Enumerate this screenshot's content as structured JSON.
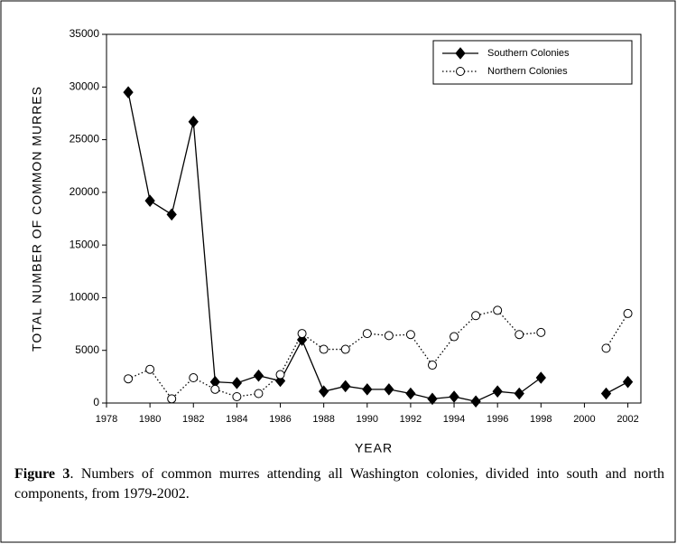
{
  "chart_data": {
    "type": "line",
    "ylabel": "TOTAL NUMBER OF COMMON MURRES",
    "xlabel": "YEAR",
    "x": [
      1979,
      1980,
      1981,
      1982,
      1983,
      1984,
      1985,
      1986,
      1987,
      1988,
      1989,
      1990,
      1991,
      1992,
      1993,
      1994,
      1995,
      1996,
      1997,
      1998,
      1999,
      2000,
      2001,
      2002
    ],
    "series": [
      {
        "name": "Southern Colonies",
        "color": "#000000",
        "line_style": "solid",
        "marker": "diamond",
        "values": [
          29500,
          19200,
          17900,
          26700,
          2000,
          1900,
          2600,
          2100,
          6000,
          1100,
          1600,
          1300,
          1300,
          900,
          400,
          600,
          150,
          1100,
          900,
          2400,
          null,
          null,
          900,
          2000
        ]
      },
      {
        "name": "Northern Colonies",
        "color": "#000000",
        "line_style": "dotted",
        "marker": "circle",
        "values": [
          2300,
          3200,
          400,
          2400,
          1300,
          600,
          900,
          2700,
          6600,
          5100,
          5100,
          6600,
          6400,
          6500,
          3600,
          6300,
          8300,
          8800,
          6500,
          6700,
          null,
          null,
          5200,
          8500
        ]
      }
    ],
    "xlim": [
      1978,
      2002.6
    ],
    "xticks": [
      1978,
      1980,
      1982,
      1984,
      1986,
      1988,
      1990,
      1992,
      1994,
      1996,
      1998,
      2000,
      2002
    ],
    "ylim": [
      0,
      35000
    ],
    "yticks": [
      0,
      5000,
      10000,
      15000,
      20000,
      25000,
      30000,
      35000
    ],
    "legend": "upper right"
  },
  "caption": {
    "label": "Figure 3",
    "text": ".   Numbers of common murres attending all Washington colonies, divided into south and north components, from 1979-2002."
  }
}
